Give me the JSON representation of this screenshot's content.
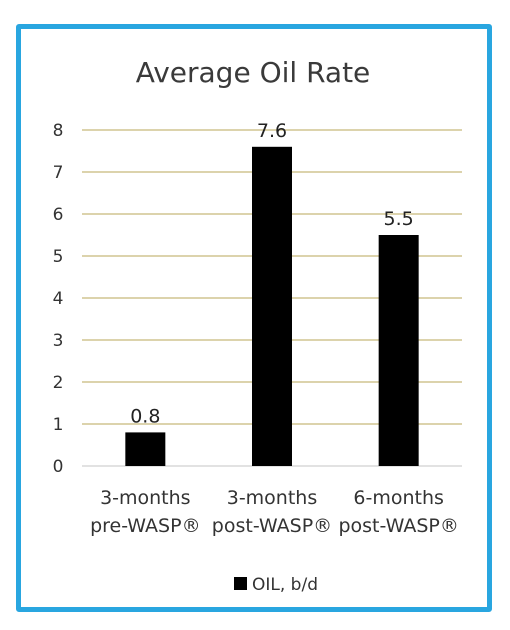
{
  "chart_data": {
    "type": "bar",
    "title": "Average Oil Rate",
    "categories": [
      "3-months\npre-WASP®",
      "3-months\npost-WASP®",
      "6-months\npost-WASP®"
    ],
    "series": [
      {
        "name": "OIL, b/d",
        "values": [
          0.8,
          7.6,
          5.5
        ]
      }
    ],
    "data_labels": [
      "0.8",
      "7.6",
      "5.5"
    ],
    "y_ticks": [
      "0",
      "1",
      "2",
      "3",
      "4",
      "5",
      "6",
      "7",
      "8"
    ],
    "ylim": [
      0,
      8
    ],
    "grid": true,
    "legend_position": "bottom",
    "colors": {
      "bar": "#000000",
      "grid": "#c8b97a",
      "frame": "#29a6e0"
    }
  }
}
